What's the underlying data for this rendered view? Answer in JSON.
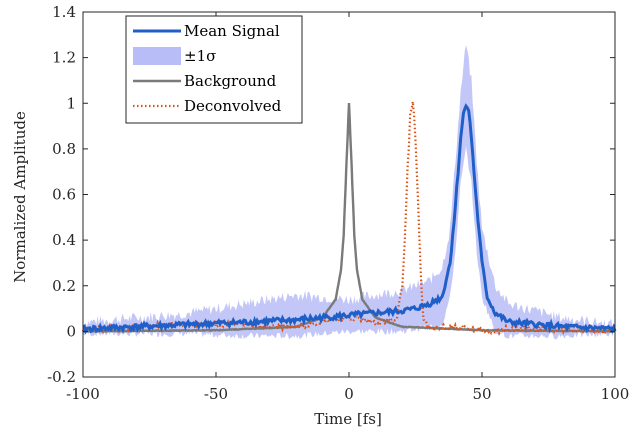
{
  "chart_data": {
    "type": "line",
    "xlabel": "Time [fs]",
    "ylabel": "Normalized Amplitude",
    "xlim": [
      -100,
      100
    ],
    "ylim": [
      -0.2,
      1.4
    ],
    "xticks": [
      -100,
      -50,
      0,
      50,
      100
    ],
    "xtick_labels": [
      "-100",
      "-50",
      "0",
      "50",
      "100"
    ],
    "yticks": [
      -0.2,
      0,
      0.2,
      0.4,
      0.6,
      0.8,
      1.0,
      1.2,
      1.4
    ],
    "ytick_labels": [
      "-0.2",
      "0",
      "0.2",
      "0.4",
      "0.6",
      "0.8",
      "1",
      "1.2",
      "1.4"
    ],
    "grid": false,
    "legend": {
      "position": "top-left",
      "entries": [
        "Mean Signal",
        "±1σ",
        "Background",
        "Deconvolved"
      ]
    },
    "colors": {
      "mean_signal": "#1f5fc7",
      "band": "#b9bdf7",
      "background": "#7a7a7a",
      "deconvolved": "#d95319"
    },
    "series": [
      {
        "name": "Mean Signal",
        "style": "solid",
        "x": [
          -100,
          -90,
          -80,
          -70,
          -60,
          -50,
          -40,
          -30,
          -20,
          -10,
          0,
          10,
          20,
          25,
          30,
          35,
          38,
          40,
          42,
          43,
          44,
          45,
          46,
          48,
          50,
          52,
          55,
          60,
          70,
          80,
          90,
          100
        ],
        "y": [
          0.01,
          0.015,
          0.02,
          0.025,
          0.03,
          0.035,
          0.04,
          0.045,
          0.05,
          0.06,
          0.07,
          0.08,
          0.09,
          0.1,
          0.12,
          0.15,
          0.3,
          0.55,
          0.85,
          0.95,
          1.0,
          0.97,
          0.85,
          0.55,
          0.3,
          0.15,
          0.08,
          0.04,
          0.03,
          0.02,
          0.015,
          0.01
        ]
      },
      {
        "name": "±1σ",
        "style": "band",
        "x": [
          -100,
          -80,
          -60,
          -40,
          -20,
          0,
          20,
          30,
          35,
          38,
          40,
          42,
          44,
          46,
          48,
          50,
          55,
          60,
          80,
          100
        ],
        "upper": [
          0.04,
          0.06,
          0.08,
          0.12,
          0.16,
          0.14,
          0.18,
          0.22,
          0.28,
          0.45,
          0.75,
          1.05,
          1.26,
          1.1,
          0.75,
          0.45,
          0.2,
          0.12,
          0.06,
          0.03
        ],
        "lower": [
          -0.01,
          -0.01,
          -0.01,
          -0.02,
          -0.02,
          0.0,
          0.0,
          0.02,
          0.03,
          0.15,
          0.35,
          0.65,
          0.8,
          0.65,
          0.35,
          0.15,
          0.0,
          -0.02,
          -0.02,
          -0.01
        ]
      },
      {
        "name": "Background",
        "style": "solid",
        "x": [
          -100,
          -50,
          -20,
          -10,
          -5,
          -3,
          -2,
          -1,
          0,
          1,
          2,
          3,
          5,
          10,
          20,
          50,
          100
        ],
        "y": [
          0.0,
          0.005,
          0.02,
          0.06,
          0.14,
          0.27,
          0.42,
          0.72,
          1.0,
          0.72,
          0.42,
          0.27,
          0.14,
          0.06,
          0.02,
          0.005,
          0.0
        ]
      },
      {
        "name": "Deconvolved",
        "style": "dotted",
        "x": [
          -100,
          -80,
          -60,
          -40,
          -20,
          -10,
          0,
          10,
          18,
          20,
          21,
          22,
          23,
          24,
          25,
          26,
          27,
          28,
          30,
          40,
          50,
          60,
          80,
          100
        ],
        "y": [
          0.01,
          0.02,
          0.03,
          0.03,
          0.02,
          0.05,
          0.06,
          0.04,
          0.05,
          0.2,
          0.4,
          0.7,
          0.95,
          1.0,
          0.85,
          0.55,
          0.25,
          0.05,
          0.01,
          0.02,
          0.0,
          0.01,
          0.01,
          0.0
        ]
      }
    ]
  }
}
